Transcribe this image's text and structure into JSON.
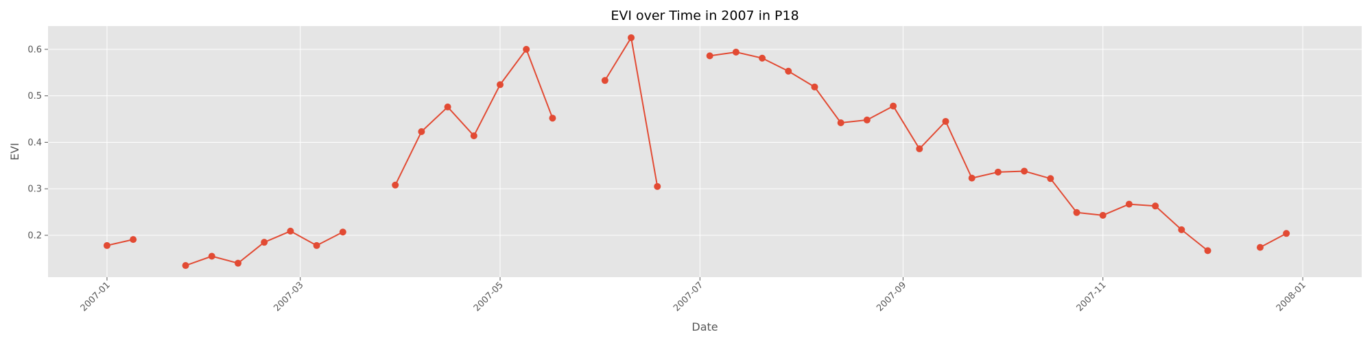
{
  "chart_data": {
    "type": "line",
    "title": "EVI over Time in 2007 in P18",
    "xlabel": "Date",
    "ylabel": "EVI",
    "x_ticks": [
      "2007-01-01",
      "2007-03-01",
      "2007-05-01",
      "2007-07-01",
      "2007-09-01",
      "2007-11-01",
      "2008-01-01"
    ],
    "x_tick_labels": [
      "2007-01",
      "2007-03",
      "2007-05",
      "2007-07",
      "2007-09",
      "2007-11",
      "2008-01"
    ],
    "y_ticks": [
      0.2,
      0.3,
      0.4,
      0.5,
      0.6
    ],
    "y_tick_labels": [
      "0.2",
      "0.3",
      "0.4",
      "0.5",
      "0.6"
    ],
    "xlim": [
      "2006-12-14",
      "2008-01-19"
    ],
    "ylim": [
      0.11,
      0.65
    ],
    "grid": true,
    "colors": {
      "series": "#E24A33",
      "plot_bg": "#E5E5E5",
      "grid": "#FFFFFF"
    },
    "series": [
      {
        "points": [
          [
            "2007-01-01",
            0.178
          ],
          [
            "2007-01-09",
            0.191
          ],
          [
            "2007-01-17",
            null
          ],
          [
            "2007-01-25",
            0.135
          ],
          [
            "2007-02-02",
            0.155
          ],
          [
            "2007-02-10",
            0.14
          ],
          [
            "2007-02-18",
            0.185
          ],
          [
            "2007-02-26",
            0.209
          ],
          [
            "2007-03-06",
            0.178
          ],
          [
            "2007-03-14",
            0.207
          ],
          [
            "2007-03-22",
            null
          ],
          [
            "2007-03-30",
            0.308
          ],
          [
            "2007-04-07",
            0.423
          ],
          [
            "2007-04-15",
            0.476
          ],
          [
            "2007-04-23",
            0.414
          ],
          [
            "2007-05-01",
            0.524
          ],
          [
            "2007-05-09",
            0.6
          ],
          [
            "2007-05-17",
            0.452
          ],
          [
            "2007-05-25",
            null
          ],
          [
            "2007-06-02",
            0.533
          ],
          [
            "2007-06-10",
            0.625
          ],
          [
            "2007-06-18",
            0.305
          ],
          [
            "2007-06-26",
            null
          ],
          [
            "2007-07-04",
            0.586
          ],
          [
            "2007-07-12",
            0.594
          ],
          [
            "2007-07-20",
            0.581
          ],
          [
            "2007-07-28",
            0.553
          ],
          [
            "2007-08-05",
            0.519
          ],
          [
            "2007-08-13",
            0.442
          ],
          [
            "2007-08-21",
            0.448
          ],
          [
            "2007-08-29",
            0.478
          ],
          [
            "2007-09-06",
            0.386
          ],
          [
            "2007-09-14",
            0.445
          ],
          [
            "2007-09-22",
            0.323
          ],
          [
            "2007-09-30",
            0.336
          ],
          [
            "2007-10-08",
            0.338
          ],
          [
            "2007-10-16",
            0.322
          ],
          [
            "2007-10-24",
            0.249
          ],
          [
            "2007-11-01",
            0.243
          ],
          [
            "2007-11-09",
            0.267
          ],
          [
            "2007-11-17",
            0.263
          ],
          [
            "2007-11-25",
            0.212
          ],
          [
            "2007-12-03",
            0.167
          ],
          [
            "2007-12-11",
            null
          ],
          [
            "2007-12-19",
            0.174
          ],
          [
            "2007-12-27",
            0.204
          ]
        ]
      }
    ]
  }
}
